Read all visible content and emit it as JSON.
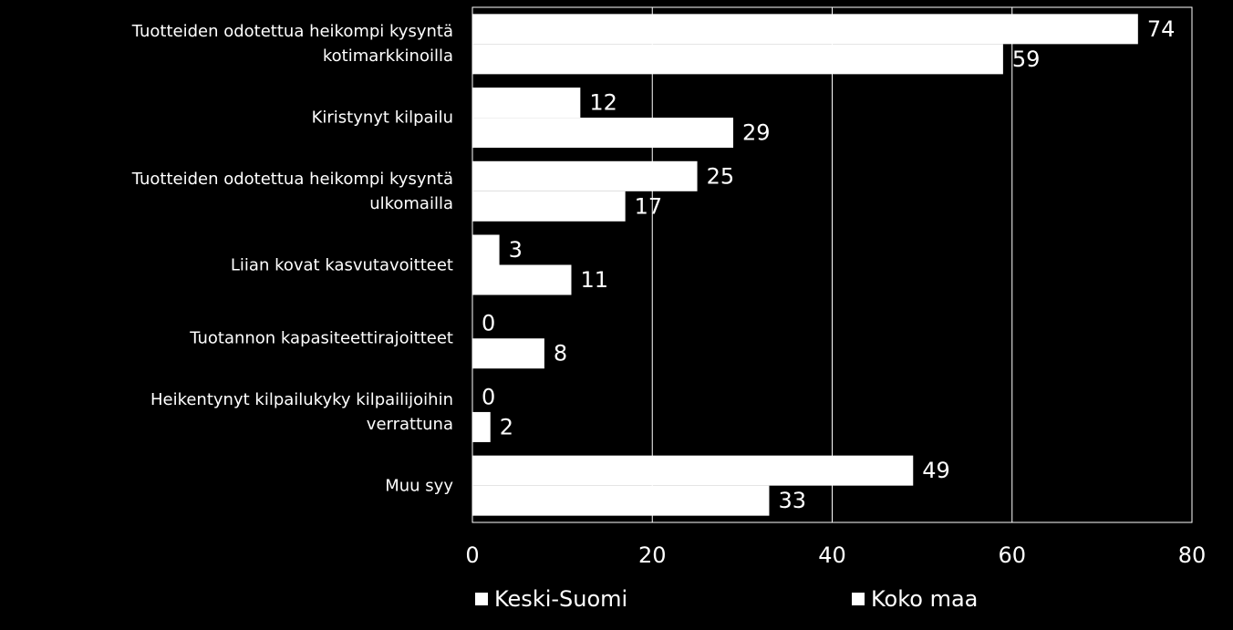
{
  "chart_data": {
    "type": "barh",
    "categories": [
      "Tuotteiden odotettua heikompi kysyntä kotimarkkinoilla",
      "Kiristynyt kilpailu",
      "Tuotteiden odotettua heikompi kysyntä ulkomailla",
      "Liian kovat kasvutavoitteet",
      "Tuotannon kapasiteettirajoitteet",
      "Heikentynyt kilpailukyky kilpailijoihin verrattuna",
      "Muu syy"
    ],
    "series": [
      {
        "name": "Keski-Suomi",
        "color": "#ffffff",
        "values": [
          74,
          12,
          25,
          3,
          0,
          0,
          49
        ]
      },
      {
        "name": "Koko maa",
        "color": "#ffffff",
        "values": [
          59,
          29,
          17,
          11,
          8,
          2,
          33
        ]
      }
    ],
    "xlim": [
      0,
      80
    ],
    "xticks": [
      0,
      20,
      40,
      60,
      80
    ],
    "grid": true
  }
}
